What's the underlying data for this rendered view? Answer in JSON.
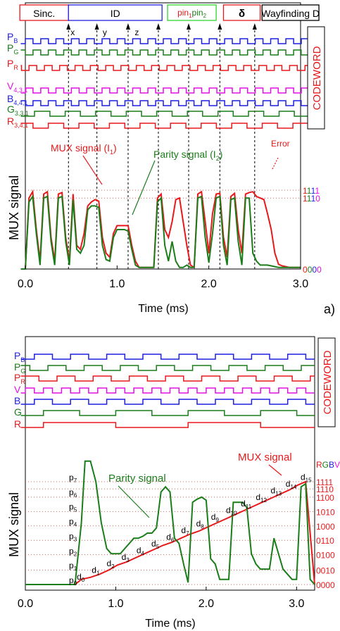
{
  "colors": {
    "red": "#e8191b",
    "green": "#1a7d1a",
    "blue": "#1f1fe0",
    "magenta": "#e012e0",
    "lightgreen": "#32d62f",
    "black": "#000000",
    "grid": "#e05a5a"
  },
  "chart_data": [
    {
      "type": "line",
      "panel_label": "a)",
      "xlabel": "Time (ms)",
      "ylabel": "MUX signal",
      "side_label": "CODEWORD",
      "xlim": [
        0.0,
        3.0
      ],
      "xticks": [
        "0.0",
        "1.0",
        "2.0",
        "3.0"
      ],
      "header_boxes": [
        {
          "label": "Sinc.",
          "color": "#e8191b",
          "t0": -0.06,
          "t1": 0.47
        },
        {
          "label": "ID",
          "color": "#1f1fe0",
          "t0": 0.47,
          "t1": 1.49
        },
        {
          "label_a": "pin",
          "sub_a": "1",
          "label_b": "pin",
          "sub_b": "2",
          "color": "#32d62f",
          "t0": 1.55,
          "t1": 2.08
        },
        {
          "label": "δ",
          "color": "#e8191b",
          "t0": 2.16,
          "t1": 2.56
        },
        {
          "label": "Wayfinding D",
          "color": "#000000",
          "t0": 2.58,
          "t1": 3.2
        }
      ],
      "id_markers": [
        {
          "label": "x",
          "t": 0.6
        },
        {
          "label": "y",
          "t": 0.95
        },
        {
          "label": "z",
          "t": 1.3
        }
      ],
      "dashed_lines_t": [
        0.47,
        0.78,
        1.12,
        1.45,
        1.78,
        2.12,
        2.5
      ],
      "right_levels": [
        {
          "label": "1111",
          "value": 1.0,
          "colors": [
            "#e8191b",
            "#1a7d1a",
            "#1f1fe0",
            "#e012e0"
          ]
        },
        {
          "label": "1110",
          "value": 0.9,
          "colors": [
            "#e8191b",
            "#1a7d1a",
            "#1f1fe0",
            "#e012e0"
          ]
        },
        {
          "label": "0000",
          "value": 0.0,
          "colors": [
            "#e8191b",
            "#1a7d1a",
            "#1f1fe0",
            "#e012e0"
          ]
        }
      ],
      "channels": [
        {
          "label": "P",
          "sub": "B",
          "color": "#1f1fe0",
          "period": 0.167,
          "duty": 0.5,
          "phase": 0.0,
          "start": -0.05,
          "end": 3.2
        },
        {
          "label": "P",
          "sub": "G",
          "color": "#1a7d1a",
          "period": 0.167,
          "duty": 0.5,
          "phase": 0.083,
          "start": -0.05,
          "end": 3.2
        },
        {
          "label": "P",
          "sub": "R",
          "color": "#e8191b",
          "period": 0.167,
          "duty": 0.5,
          "phase": 0.04,
          "start": -0.05,
          "end": 3.2
        },
        {
          "label": "V",
          "sub": "4,3,1",
          "color": "#e012e0",
          "period": 0.167,
          "duty": 0.5,
          "phase": 0.0,
          "start": -0.05,
          "end": 3.2
        },
        {
          "label": "B",
          "sub": "4,4,1",
          "color": "#1f1fe0",
          "period": 0.167,
          "duty": 0.5,
          "phase": 0.083,
          "start": -0.05,
          "end": 3.2
        },
        {
          "label": "G",
          "sub": "3,3,1",
          "color": "#1a7d1a",
          "period": 0.333,
          "duty": 0.5,
          "phase": 0.1,
          "start": -0.05,
          "end": 3.2
        },
        {
          "label": "R",
          "sub": "3,4,1",
          "color": "#e8191b",
          "period": 0.333,
          "duty": 0.5,
          "phase": 0.25,
          "start": -0.05,
          "end": 3.2
        }
      ],
      "series": [
        {
          "name": "MUX signal (I",
          "sub": "1",
          "suffix": ")",
          "color": "#e8191b",
          "label_t": 0.4,
          "label_v": 1.2,
          "x": [
            -0.05,
            0.0,
            0.04,
            0.08,
            0.12,
            0.16,
            0.2,
            0.24,
            0.28,
            0.32,
            0.36,
            0.4,
            0.44,
            0.48,
            0.52,
            0.56,
            0.6,
            0.64,
            0.68,
            0.72,
            0.76,
            0.8,
            0.84,
            0.88,
            0.92,
            0.96,
            1.0,
            1.04,
            1.08,
            1.12,
            1.16,
            1.2,
            1.24,
            1.28,
            1.32,
            1.36,
            1.4,
            1.44,
            1.48,
            1.52,
            1.56,
            1.6,
            1.64,
            1.68,
            1.72,
            1.76,
            1.8,
            1.84,
            1.88,
            1.92,
            1.96,
            2.0,
            2.04,
            2.08,
            2.12,
            2.16,
            2.2,
            2.24,
            2.28,
            2.32,
            2.36,
            2.4,
            2.44,
            2.48,
            2.52,
            2.56,
            2.6,
            2.64,
            2.68,
            2.72,
            2.76,
            2.8,
            2.84,
            2.88,
            2.92,
            2.96,
            3.0
          ],
          "y": [
            0.0,
            0.0,
            0.9,
            0.98,
            0.5,
            0.1,
            0.95,
            0.98,
            0.4,
            0.1,
            0.95,
            0.97,
            0.4,
            0.1,
            0.95,
            0.3,
            0.25,
            0.45,
            0.8,
            0.85,
            0.88,
            0.86,
            0.4,
            0.2,
            0.15,
            0.45,
            0.55,
            0.55,
            0.55,
            0.55,
            0.3,
            0.1,
            0.02,
            0.02,
            0.02,
            0.02,
            0.02,
            0.9,
            0.95,
            0.5,
            0.4,
            0.6,
            0.88,
            0.9,
            0.6,
            0.3,
            0.05,
            0.02,
            0.95,
            0.98,
            0.6,
            0.2,
            0.7,
            0.95,
            0.96,
            0.4,
            0.15,
            0.92,
            0.96,
            0.5,
            0.2,
            0.95,
            0.97,
            0.98,
            0.92,
            0.9,
            0.88,
            0.7,
            0.5,
            0.2,
            0.06,
            0.04,
            0.03,
            0.02,
            0.02,
            0.02,
            0.02
          ]
        },
        {
          "name": "Parity signal (I",
          "sub": "2",
          "suffix": ")",
          "color": "#1a7d1a",
          "label_t": 1.3,
          "label_v": 1.15,
          "x": [
            -0.05,
            0.0,
            0.04,
            0.08,
            0.12,
            0.16,
            0.2,
            0.24,
            0.28,
            0.32,
            0.36,
            0.4,
            0.44,
            0.48,
            0.52,
            0.56,
            0.6,
            0.64,
            0.68,
            0.72,
            0.76,
            0.8,
            0.84,
            0.88,
            0.92,
            0.96,
            1.0,
            1.04,
            1.08,
            1.12,
            1.16,
            1.2,
            1.24,
            1.28,
            1.32,
            1.36,
            1.4,
            1.44,
            1.48,
            1.52,
            1.56,
            1.6,
            1.64,
            1.68,
            1.72,
            1.76,
            1.8,
            1.84,
            1.88,
            1.92,
            1.96,
            2.0,
            2.04,
            2.08,
            2.12,
            2.16,
            2.2,
            2.24,
            2.28,
            2.32,
            2.36,
            2.4,
            2.44,
            2.48,
            2.52,
            2.56,
            2.6,
            2.64,
            2.68,
            2.72,
            2.76,
            2.8,
            2.84,
            2.88,
            2.92,
            2.96,
            3.0
          ],
          "y": [
            0.0,
            0.0,
            0.85,
            0.92,
            0.45,
            0.05,
            0.9,
            0.92,
            0.35,
            0.05,
            0.9,
            0.92,
            0.35,
            0.05,
            0.88,
            0.25,
            0.2,
            0.3,
            0.75,
            0.8,
            0.8,
            0.78,
            0.3,
            0.12,
            0.1,
            0.4,
            0.5,
            0.5,
            0.5,
            0.48,
            0.25,
            0.05,
            0.02,
            0.02,
            0.02,
            0.02,
            0.02,
            0.85,
            0.9,
            0.3,
            0.1,
            0.35,
            0.1,
            0.02,
            0.02,
            0.05,
            0.02,
            0.02,
            0.9,
            0.92,
            0.4,
            0.08,
            0.45,
            0.9,
            0.92,
            0.3,
            0.05,
            0.88,
            0.9,
            0.35,
            0.05,
            0.9,
            0.9,
            0.2,
            0.1,
            0.05,
            0.05,
            0.05,
            0.04,
            0.03,
            0.02,
            0.02,
            0.02,
            0.02,
            0.02,
            0.02,
            0.02
          ]
        }
      ],
      "annotations": [
        {
          "text": "Error",
          "color": "#e8191b",
          "t": 2.72,
          "v": 1.23
        }
      ]
    },
    {
      "type": "line",
      "xlabel": "Time (ms)",
      "ylabel": "MUX signal",
      "side_label": "CODEWORD",
      "xlim": [
        0.0,
        3.2
      ],
      "xticks": [
        "0.0",
        "1.0",
        "2.0",
        "3.0"
      ],
      "channels": [
        {
          "label": "P",
          "sub": "B",
          "color": "#1f1fe0",
          "period": 0.4,
          "duty": 0.5,
          "phase": 0.1,
          "start": -0.05,
          "end": 3.2
        },
        {
          "label": "P",
          "sub": "G",
          "color": "#1a7d1a",
          "period": 0.4,
          "duty": 0.5,
          "phase": 0.25,
          "start": -0.05,
          "end": 3.2
        },
        {
          "label": "P",
          "sub": "R",
          "color": "#e8191b",
          "period": 0.4,
          "duty": 0.5,
          "phase": 0.35,
          "start": -0.05,
          "end": 3.2
        },
        {
          "label": "V",
          "sub": "",
          "color": "#e012e0",
          "period": 0.2,
          "duty": 0.5,
          "phase": 0.0,
          "start": -0.05,
          "end": 3.2
        },
        {
          "label": "B",
          "sub": "",
          "color": "#1f1fe0",
          "period": 0.4,
          "duty": 0.5,
          "phase": 0.1,
          "start": -0.05,
          "end": 3.2
        },
        {
          "label": "G",
          "sub": "",
          "color": "#1a7d1a",
          "period": 0.8,
          "duty": 0.5,
          "phase": 0.2,
          "start": -0.05,
          "end": 3.2
        },
        {
          "label": "R",
          "sub": "",
          "color": "#e8191b",
          "period": 1.6,
          "duty": 0.5,
          "phase": 0.2,
          "start": -0.05,
          "end": 3.2
        }
      ],
      "level_labels": [
        "p",
        "p",
        "p",
        "p",
        "p",
        "p",
        "p",
        "p"
      ],
      "level_subs": [
        "0",
        "1",
        "2",
        "3",
        "4",
        "5",
        "6",
        "7"
      ],
      "step_labels": [
        "d",
        "d",
        "d",
        "d",
        "d",
        "d",
        "d",
        "d",
        "d",
        "d",
        "d",
        "d",
        "d",
        "d",
        "d",
        "d"
      ],
      "step_subs": [
        "0",
        "1",
        "2",
        "3",
        "4",
        "5",
        "6",
        "7",
        "8",
        "9",
        "10",
        "11",
        "12",
        "13",
        "14",
        "15"
      ],
      "right_header": {
        "text": "RGBV",
        "colors": [
          "#e8191b",
          "#1a7d1a",
          "#1f1fe0",
          "#e012e0"
        ]
      },
      "right_levels": [
        {
          "label": "1111",
          "value": 1.0
        },
        {
          "label": "1110",
          "value": 0.93
        },
        {
          "label": "1100",
          "value": 0.85
        },
        {
          "label": "1010",
          "value": 0.71
        },
        {
          "label": "1000",
          "value": 0.57
        },
        {
          "label": "0110",
          "value": 0.43
        },
        {
          "label": "0100",
          "value": 0.29
        },
        {
          "label": "0010",
          "value": 0.14
        },
        {
          "label": "0000",
          "value": 0.0
        }
      ],
      "series": [
        {
          "name": "MUX signal",
          "color": "#e8191b",
          "label_t": 2.7,
          "label_v": 1.2,
          "x": [
            0.0,
            0.55,
            0.62,
            0.72,
            0.82,
            0.92,
            1.02,
            1.12,
            1.22,
            1.32,
            1.42,
            1.52,
            1.62,
            1.72,
            1.82,
            1.92,
            2.02,
            2.12,
            2.22,
            2.32,
            2.42,
            2.52,
            2.62,
            2.72,
            2.82,
            2.92,
            3.02,
            3.1,
            3.15,
            3.2
          ],
          "y": [
            0.0,
            0.0,
            0.05,
            0.07,
            0.1,
            0.14,
            0.19,
            0.22,
            0.26,
            0.3,
            0.34,
            0.38,
            0.41,
            0.45,
            0.49,
            0.52,
            0.56,
            0.6,
            0.64,
            0.68,
            0.72,
            0.76,
            0.8,
            0.84,
            0.88,
            0.92,
            0.97,
            1.0,
            0.5,
            0.0
          ]
        },
        {
          "name": "Parity signal",
          "color": "#1a7d1a",
          "label_t": 1.3,
          "label_v": 1.2,
          "x": [
            0.0,
            0.55,
            0.62,
            0.66,
            0.72,
            0.78,
            0.84,
            0.9,
            0.95,
            1.0,
            1.05,
            1.1,
            1.15,
            1.2,
            1.25,
            1.3,
            1.35,
            1.4,
            1.45,
            1.5,
            1.55,
            1.6,
            1.65,
            1.7,
            1.75,
            1.8,
            1.85,
            1.9,
            1.95,
            2.0,
            2.05,
            2.1,
            2.15,
            2.2,
            2.25,
            2.3,
            2.35,
            2.4,
            2.45,
            2.5,
            2.55,
            2.6,
            2.65,
            2.7,
            2.75,
            2.8,
            2.85,
            2.9,
            2.95,
            3.0,
            3.05,
            3.1,
            3.15,
            3.2
          ],
          "y": [
            0.0,
            0.0,
            0.6,
            1.2,
            1.2,
            1.0,
            0.6,
            0.35,
            0.3,
            0.3,
            0.3,
            0.35,
            0.4,
            0.45,
            0.45,
            0.47,
            0.5,
            0.5,
            0.55,
            0.9,
            0.95,
            0.9,
            0.45,
            0.4,
            0.2,
            0.02,
            0.8,
            0.83,
            0.85,
            0.82,
            0.25,
            0.2,
            0.05,
            0.05,
            0.05,
            0.8,
            0.8,
            0.8,
            0.75,
            0.3,
            0.2,
            0.15,
            0.15,
            0.15,
            0.45,
            0.3,
            0.15,
            0.1,
            0.05,
            0.05,
            0.95,
            0.98,
            0.05,
            0.0
          ]
        }
      ]
    }
  ]
}
